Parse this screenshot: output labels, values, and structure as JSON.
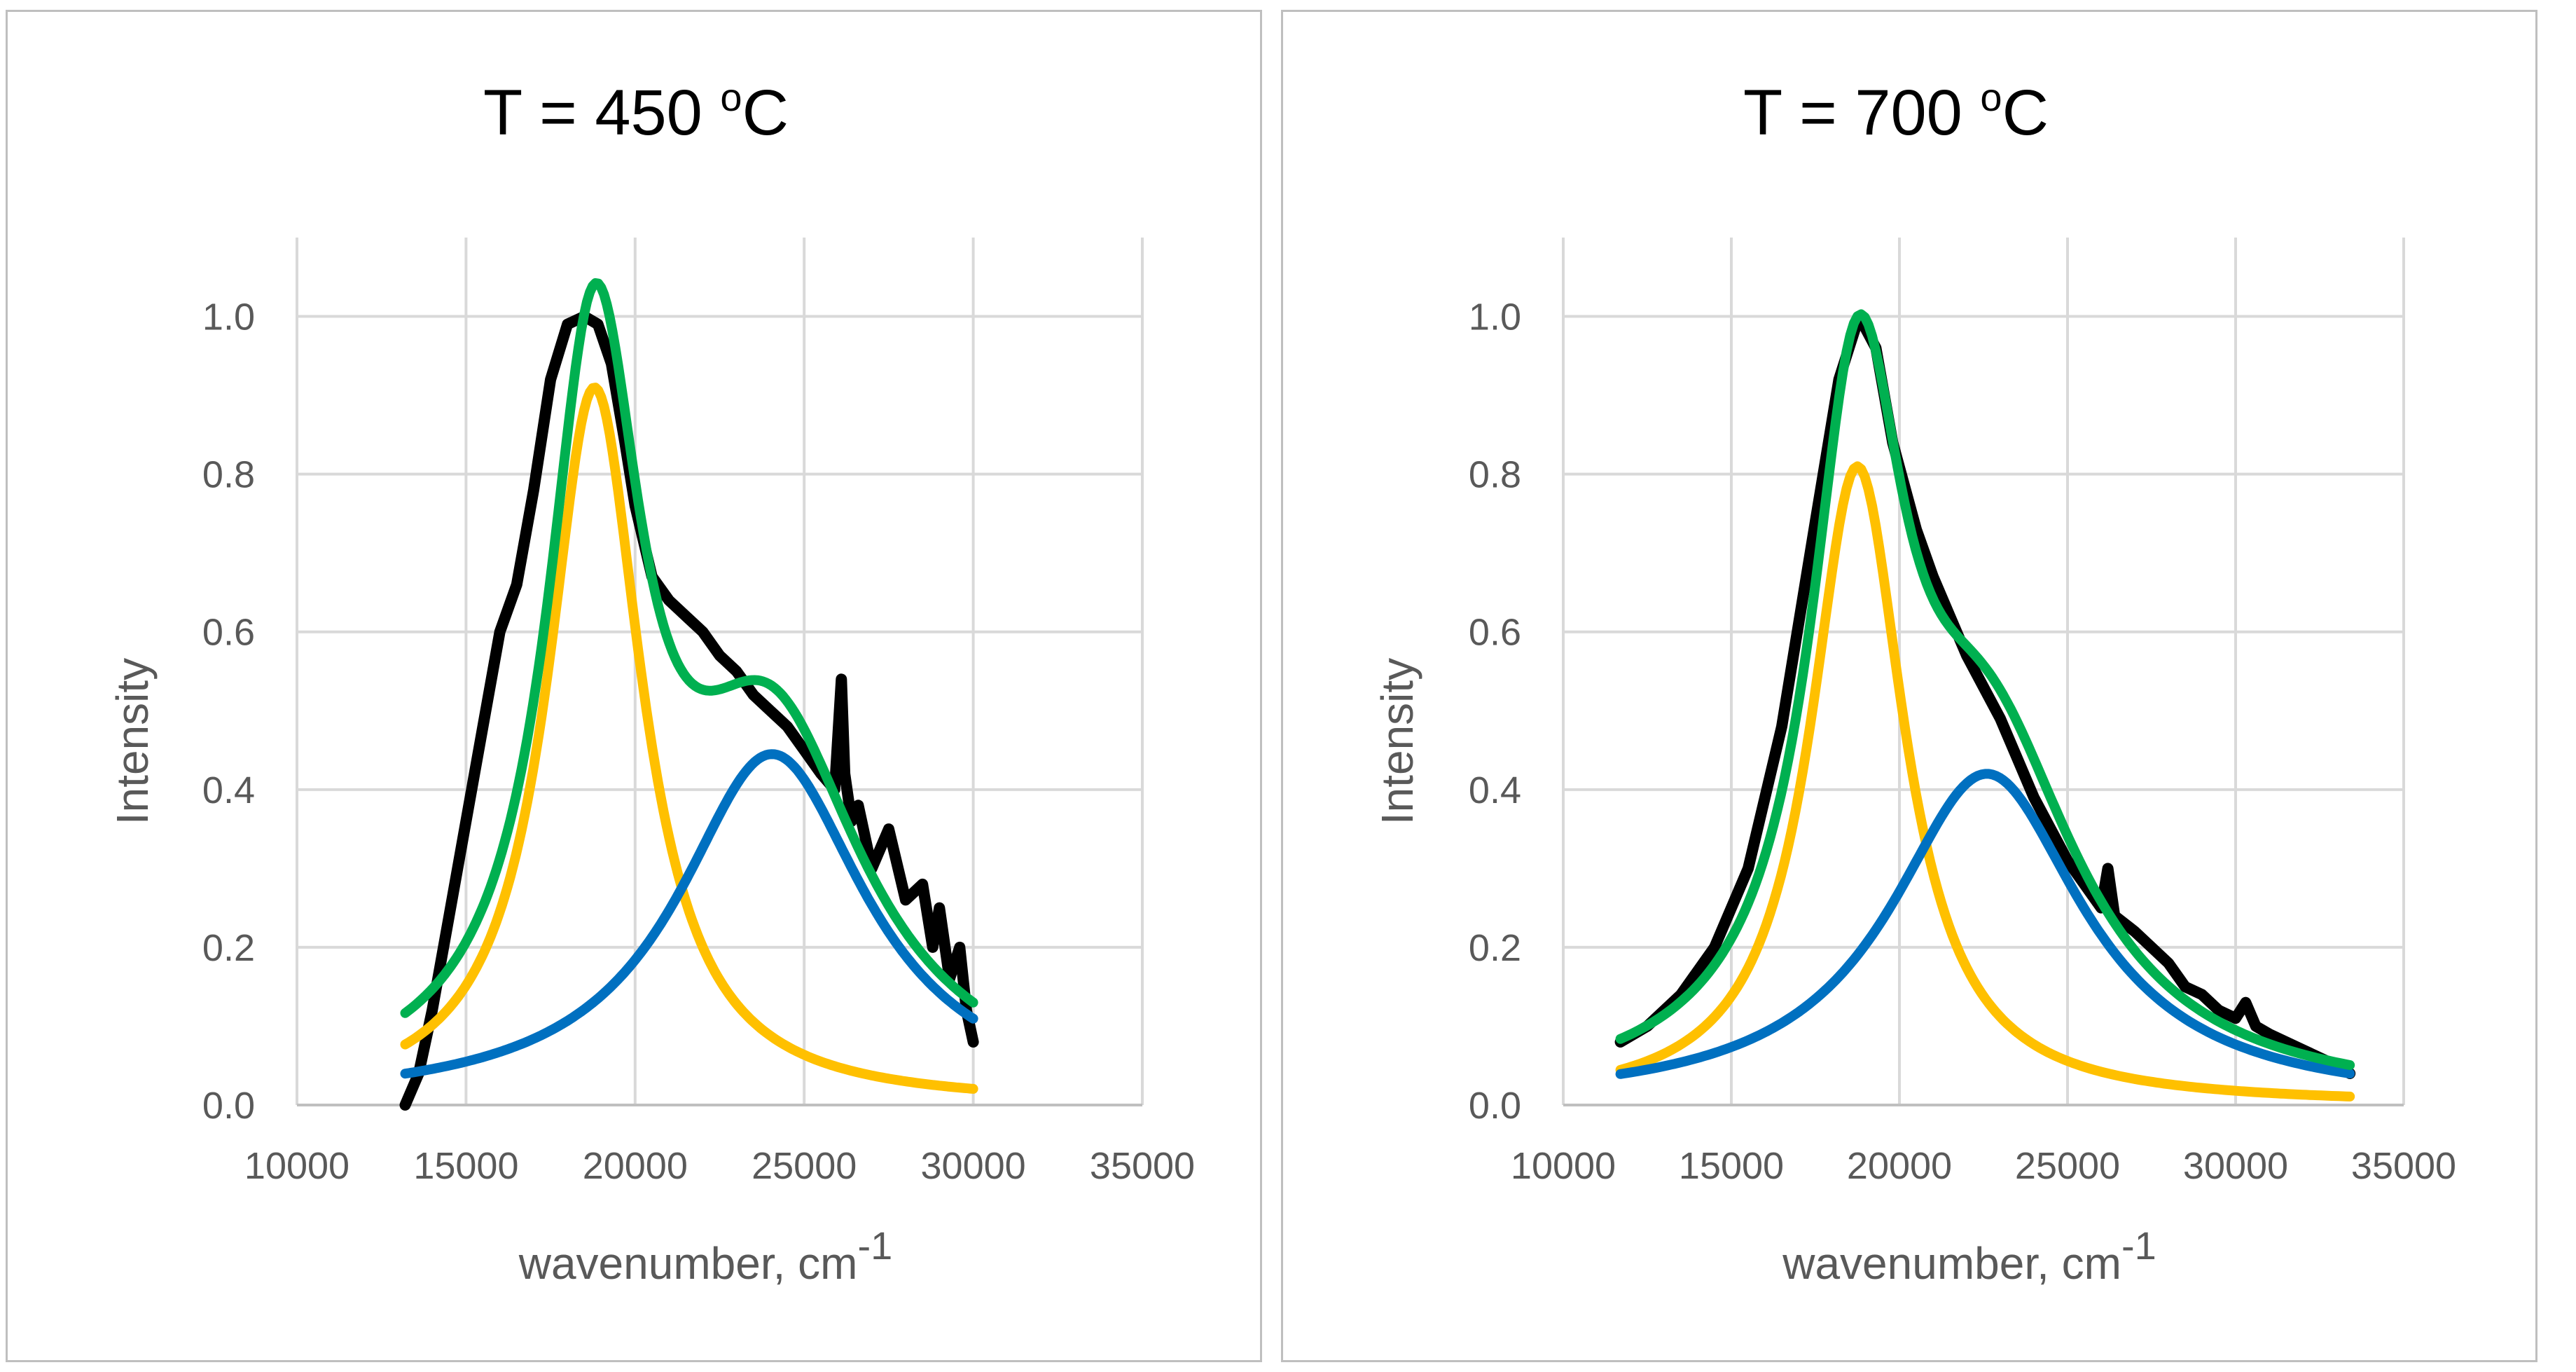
{
  "colors": {
    "data": "#000000",
    "peak1": "#FFC000",
    "peak2": "#0070C0",
    "fit": "#00B050",
    "grid": "#d9d9d9",
    "border": "#bfbfbf"
  },
  "chart_data": [
    {
      "type": "line",
      "title": {
        "main": "T = 450 ",
        "sup": "o",
        "unit": "C"
      },
      "xlabel": {
        "main": "wavenumber, cm",
        "sup": "-1"
      },
      "ylabel": "Intensity",
      "xlim": [
        10000,
        35000
      ],
      "ylim": [
        0,
        1.1
      ],
      "xticks": [
        "10000",
        "15000",
        "20000",
        "25000",
        "30000",
        "35000"
      ],
      "yticks": [
        "0.0",
        "0.2",
        "0.4",
        "0.6",
        "0.8",
        "1.0"
      ],
      "grid": true,
      "series": [
        {
          "role": "data",
          "color": "#000000",
          "x": [
            13200,
            13600,
            14000,
            14500,
            15000,
            15500,
            16000,
            16500,
            17000,
            17500,
            18000,
            18500,
            18900,
            19300,
            19700,
            20000,
            20500,
            21000,
            21500,
            22000,
            22500,
            23000,
            23500,
            24000,
            24500,
            25000,
            25500,
            25900,
            26100,
            26200,
            26400,
            26600,
            27000,
            27500,
            28000,
            28500,
            28800,
            29000,
            29300,
            29600,
            29800,
            30000
          ],
          "y": [
            0.0,
            0.04,
            0.12,
            0.24,
            0.36,
            0.48,
            0.6,
            0.66,
            0.78,
            0.92,
            0.99,
            1.0,
            0.99,
            0.94,
            0.84,
            0.76,
            0.67,
            0.64,
            0.62,
            0.6,
            0.57,
            0.55,
            0.52,
            0.5,
            0.48,
            0.45,
            0.42,
            0.4,
            0.54,
            0.42,
            0.36,
            0.38,
            0.3,
            0.35,
            0.26,
            0.28,
            0.2,
            0.25,
            0.16,
            0.2,
            0.12,
            0.08
          ]
        },
        {
          "role": "peak1",
          "color": "#FFC000",
          "model": "lorentz",
          "amplitude": 0.91,
          "center": 18800,
          "fwhm": 3400,
          "xrange": [
            13200,
            30000
          ]
        },
        {
          "role": "peak2",
          "color": "#0070C0",
          "model": "lorentz",
          "amplitude": 0.445,
          "center": 24050,
          "fwhm": 6800,
          "xrange": [
            13200,
            30000
          ]
        },
        {
          "role": "fit",
          "color": "#00B050",
          "model": "sum",
          "xrange": [
            13200,
            30000
          ]
        }
      ]
    },
    {
      "type": "line",
      "title": {
        "main": "T = 700 ",
        "sup": "o",
        "unit": "C"
      },
      "xlabel": {
        "main": "wavenumber, cm",
        "sup": "-1"
      },
      "ylabel": "Intensity",
      "xlim": [
        10000,
        35000
      ],
      "ylim": [
        0,
        1.1
      ],
      "xticks": [
        "10000",
        "15000",
        "20000",
        "25000",
        "30000",
        "35000"
      ],
      "yticks": [
        "0.0",
        "0.2",
        "0.4",
        "0.6",
        "0.8",
        "1.0"
      ],
      "grid": true,
      "series": [
        {
          "role": "data",
          "color": "#000000",
          "x": [
            11700,
            12500,
            13500,
            14500,
            15500,
            16500,
            17500,
            18200,
            18800,
            19300,
            19800,
            20500,
            21000,
            21500,
            22000,
            22500,
            23000,
            23500,
            24000,
            24500,
            25000,
            25500,
            26000,
            26200,
            26400,
            27000,
            27500,
            28000,
            28500,
            29000,
            29500,
            30000,
            30300,
            30600,
            31000,
            31500,
            32000,
            32500,
            33000,
            33400
          ],
          "y": [
            0.08,
            0.1,
            0.14,
            0.2,
            0.3,
            0.48,
            0.74,
            0.92,
            1.0,
            0.96,
            0.84,
            0.73,
            0.67,
            0.62,
            0.57,
            0.53,
            0.49,
            0.44,
            0.39,
            0.35,
            0.31,
            0.28,
            0.25,
            0.3,
            0.24,
            0.22,
            0.2,
            0.18,
            0.15,
            0.14,
            0.12,
            0.11,
            0.13,
            0.1,
            0.09,
            0.08,
            0.07,
            0.06,
            0.05,
            0.04
          ]
        },
        {
          "role": "peak1",
          "color": "#FFC000",
          "model": "lorentz",
          "amplitude": 0.81,
          "center": 18750,
          "fwhm": 3400,
          "xrange": [
            11700,
            33400
          ]
        },
        {
          "role": "peak2",
          "color": "#0070C0",
          "model": "lorentz",
          "amplitude": 0.42,
          "center": 22600,
          "fwhm": 7000,
          "xrange": [
            11700,
            33400
          ]
        },
        {
          "role": "fit",
          "color": "#00B050",
          "model": "sum",
          "xrange": [
            11700,
            33400
          ]
        }
      ]
    }
  ]
}
